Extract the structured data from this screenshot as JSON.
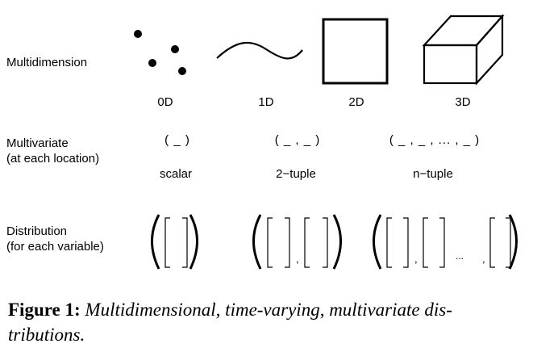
{
  "rows": {
    "multidimension_label": "Multidimension",
    "multivariate_label_1": "Multivariate",
    "multivariate_label_2": "(at each location)",
    "distribution_label_1": "Distribution",
    "distribution_label_2": "(for each variable)"
  },
  "dimensions": [
    "0D",
    "1D",
    "2D",
    "3D"
  ],
  "tuples": {
    "scalar_glyph": "( _ )",
    "pair_glyph": "( _ , _ )",
    "n_glyph": "( _ , _ , ... , _ )",
    "scalar_label": "scalar",
    "pair_label": "2−tuple",
    "n_label": "n−tuple"
  },
  "distribution_separators": {
    "comma": ",",
    "ellipsis": "...",
    "comma_end": ","
  },
  "caption": {
    "prefix": "Figure 1:",
    "text": "Multidimensional, time-varying, multivariate dis-tributions."
  }
}
